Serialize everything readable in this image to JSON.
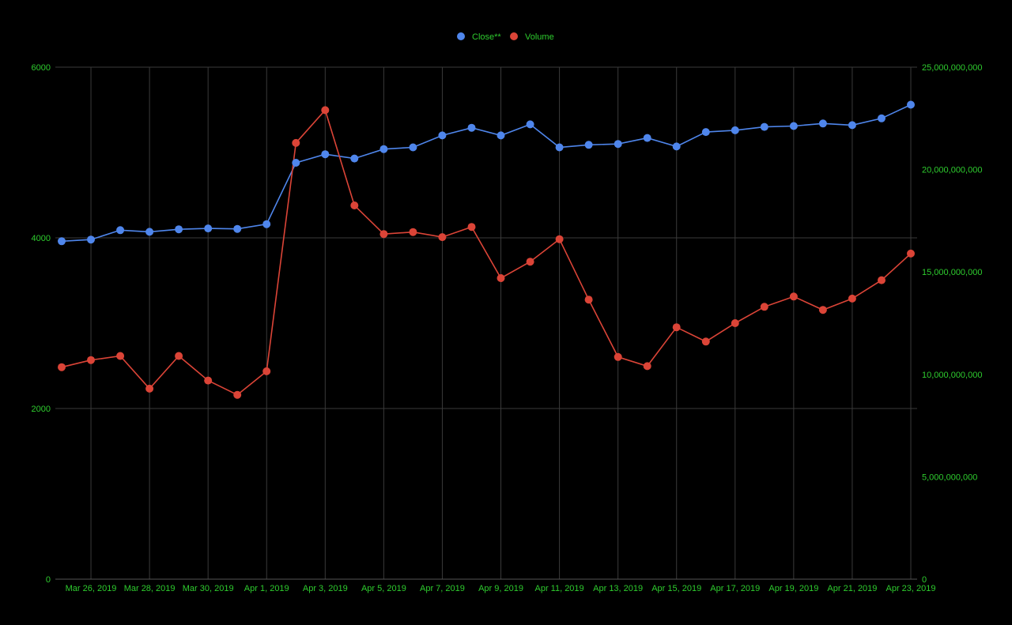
{
  "chart_data": {
    "type": "line",
    "title": "",
    "xlabel": "",
    "ylabel": "",
    "ylabel_right": "",
    "legend_position": "top-center",
    "grid": true,
    "x": [
      "2019-03-25",
      "2019-03-26",
      "2019-03-27",
      "2019-03-28",
      "2019-03-29",
      "2019-03-30",
      "2019-03-31",
      "2019-04-01",
      "2019-04-02",
      "2019-04-03",
      "2019-04-04",
      "2019-04-05",
      "2019-04-06",
      "2019-04-07",
      "2019-04-08",
      "2019-04-09",
      "2019-04-10",
      "2019-04-11",
      "2019-04-12",
      "2019-04-13",
      "2019-04-14",
      "2019-04-15",
      "2019-04-16",
      "2019-04-17",
      "2019-04-18",
      "2019-04-19",
      "2019-04-20",
      "2019-04-21",
      "2019-04-22",
      "2019-04-23"
    ],
    "x_tick_labels": [
      "Mar 26, 2019",
      "Mar 28, 2019",
      "Mar 30, 2019",
      "Apr 1, 2019",
      "Apr 3, 2019",
      "Apr 5, 2019",
      "Apr 7, 2019",
      "Apr 9, 2019",
      "Apr 11, 2019",
      "Apr 13, 2019",
      "Apr 15, 2019",
      "Apr 17, 2019",
      "Apr 19, 2019",
      "Apr 21, 2019",
      "Apr 23, 2019"
    ],
    "x_tick_dates": [
      "2019-03-26",
      "2019-03-28",
      "2019-03-30",
      "2019-04-01",
      "2019-04-03",
      "2019-04-05",
      "2019-04-07",
      "2019-04-09",
      "2019-04-11",
      "2019-04-13",
      "2019-04-15",
      "2019-04-17",
      "2019-04-19",
      "2019-04-21",
      "2019-04-23"
    ],
    "y_left": {
      "ticks": [
        0,
        2000,
        4000,
        6000
      ],
      "tick_labels": [
        "0",
        "2000",
        "4000",
        "6000"
      ],
      "ylim": [
        0,
        6000
      ]
    },
    "y_right": {
      "ticks": [
        0,
        5000000000,
        10000000000,
        15000000000,
        20000000000,
        25000000000
      ],
      "tick_labels": [
        "0",
        "5,000,000,000",
        "10,000,000,000",
        "15,000,000,000",
        "20,000,000,000",
        "25,000,000,000"
      ],
      "ylim": [
        0,
        25000000000
      ]
    },
    "series": [
      {
        "name": "Close**",
        "axis": "left",
        "color": "#4f86ec",
        "values": [
          3960,
          3980,
          4090,
          4070,
          4100,
          4110,
          4105,
          4160,
          4880,
          4980,
          4930,
          5040,
          5060,
          5200,
          5290,
          5200,
          5330,
          5060,
          5090,
          5100,
          5170,
          5070,
          5240,
          5260,
          5300,
          5310,
          5340,
          5320,
          5400,
          5560
        ]
      },
      {
        "name": "Volume",
        "axis": "right",
        "color": "#db4437",
        "values": [
          10350000000,
          10700000000,
          10900000000,
          9300000000,
          10900000000,
          9700000000,
          9000000000,
          10150000000,
          21300000000,
          22900000000,
          18250000000,
          16850000000,
          16950000000,
          16700000000,
          17200000000,
          14700000000,
          15500000000,
          16600000000,
          13650000000,
          10850000000,
          10400000000,
          12300000000,
          11600000000,
          12500000000,
          13300000000,
          13800000000,
          13150000000,
          13700000000,
          14600000000,
          15900000000
        ]
      }
    ]
  },
  "colors": {
    "background": "#000000",
    "tick_label": "#2ecc2e",
    "legend_label": "#2ecc2e",
    "grid": "#3a3a3a",
    "axis_line": "#555555"
  }
}
